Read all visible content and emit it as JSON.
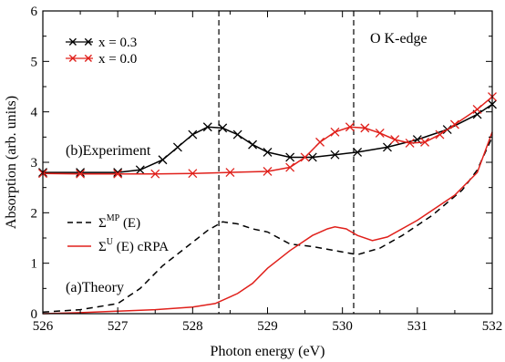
{
  "chart_data": {
    "type": "line",
    "title": "",
    "xlabel": "Photon energy (eV)",
    "ylabel": "Absorption (arb. units)",
    "xlim": [
      526,
      532
    ],
    "ylim": [
      0,
      6
    ],
    "xticks": [
      526,
      527,
      528,
      529,
      530,
      531,
      532
    ],
    "yticks": [
      0,
      1,
      2,
      3,
      4,
      5,
      6
    ],
    "vlines": [
      528.35,
      530.15
    ],
    "grid": false,
    "legend_upper": {
      "placement": "top-left"
    },
    "legend_lower": {
      "placement": "middle-left"
    },
    "annotations": {
      "edge": "O K-edge",
      "experiment": "(b)Experiment",
      "theory": "(a)Theory"
    },
    "series": [
      {
        "name": "x = 0.3",
        "color": "#000000",
        "style": "markers-x-line",
        "x": [
          526.0,
          526.5,
          527.0,
          527.3,
          527.6,
          527.8,
          528.0,
          528.2,
          528.4,
          528.6,
          528.8,
          529.0,
          529.3,
          529.6,
          529.9,
          530.2,
          530.6,
          531.0,
          531.4,
          531.8,
          532.0
        ],
        "y": [
          2.8,
          2.8,
          2.8,
          2.85,
          3.05,
          3.3,
          3.55,
          3.7,
          3.68,
          3.55,
          3.35,
          3.2,
          3.1,
          3.1,
          3.15,
          3.2,
          3.3,
          3.45,
          3.65,
          3.95,
          4.15
        ]
      },
      {
        "name": "x = 0.0",
        "color": "#e0201b",
        "style": "markers-x-line",
        "x": [
          526.0,
          526.5,
          527.0,
          527.5,
          528.0,
          528.5,
          529.0,
          529.3,
          529.5,
          529.7,
          529.9,
          530.1,
          530.3,
          530.5,
          530.7,
          530.9,
          531.1,
          531.3,
          531.5,
          531.8,
          532.0
        ],
        "y": [
          2.78,
          2.77,
          2.77,
          2.77,
          2.78,
          2.8,
          2.82,
          2.9,
          3.1,
          3.4,
          3.6,
          3.7,
          3.68,
          3.58,
          3.45,
          3.38,
          3.4,
          3.55,
          3.75,
          4.05,
          4.3
        ]
      },
      {
        "name": "Σ^MP (E)",
        "color": "#000000",
        "style": "dashed",
        "x": [
          526.0,
          526.5,
          527.0,
          527.3,
          527.6,
          527.9,
          528.2,
          528.4,
          528.6,
          528.8,
          529.0,
          529.3,
          529.6,
          529.9,
          530.2,
          530.5,
          530.8,
          531.2,
          531.6,
          531.8,
          532.0
        ],
        "y": [
          0.03,
          0.08,
          0.2,
          0.5,
          0.95,
          1.3,
          1.65,
          1.82,
          1.78,
          1.68,
          1.62,
          1.38,
          1.33,
          1.25,
          1.17,
          1.3,
          1.55,
          1.95,
          2.45,
          2.85,
          3.5
        ]
      },
      {
        "name": "Σ^U (E)  cRPA",
        "color": "#e0201b",
        "style": "solid",
        "x": [
          526.0,
          526.5,
          527.0,
          527.5,
          528.0,
          528.3,
          528.6,
          528.8,
          529.0,
          529.3,
          529.6,
          529.8,
          529.9,
          530.05,
          530.2,
          530.4,
          530.6,
          531.0,
          531.5,
          531.8,
          532.0
        ],
        "y": [
          0.0,
          0.02,
          0.05,
          0.08,
          0.13,
          0.2,
          0.4,
          0.6,
          0.9,
          1.25,
          1.55,
          1.68,
          1.72,
          1.68,
          1.55,
          1.45,
          1.52,
          1.85,
          2.35,
          2.8,
          3.6
        ]
      }
    ]
  }
}
